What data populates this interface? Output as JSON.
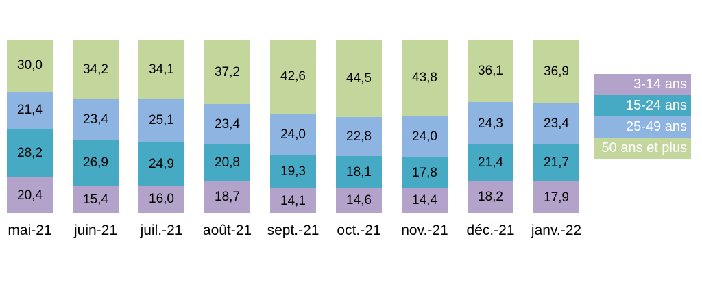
{
  "chart_data": {
    "type": "bar",
    "stacked": true,
    "title": "",
    "xlabel": "",
    "ylabel": "",
    "ylim": [
      0,
      100
    ],
    "grid": false,
    "axes_visible": false,
    "legend_position": "right",
    "value_label_decimal_separator": ",",
    "categories": [
      "mai-21",
      "juin-21",
      "juil.-21",
      "août-21",
      "sept.-21",
      "oct.-21",
      "nov.-21",
      "déc.-21",
      "janv.-22"
    ],
    "series": [
      {
        "name": "3-14 ans",
        "color": "#b3a3ca",
        "values": [
          20.4,
          15.4,
          16.0,
          18.7,
          14.1,
          14.6,
          14.4,
          18.2,
          17.9
        ]
      },
      {
        "name": "15-24 ans",
        "color": "#46aac4",
        "values": [
          28.2,
          26.9,
          24.9,
          20.8,
          19.3,
          18.1,
          17.8,
          21.4,
          21.7
        ]
      },
      {
        "name": "25-49 ans",
        "color": "#8eb4e2",
        "values": [
          21.4,
          23.4,
          25.1,
          23.4,
          24.0,
          22.8,
          24.0,
          24.3,
          23.4
        ]
      },
      {
        "name": "50 ans et plus",
        "color": "#c3d69b",
        "values": [
          30.0,
          34.2,
          34.1,
          37.2,
          42.6,
          44.5,
          43.8,
          36.1,
          36.9
        ]
      }
    ]
  },
  "colors": {
    "background": "#ffffff",
    "value_label_text": "#000000",
    "category_label_text": "#000000",
    "legend_text": "#ffffff"
  }
}
